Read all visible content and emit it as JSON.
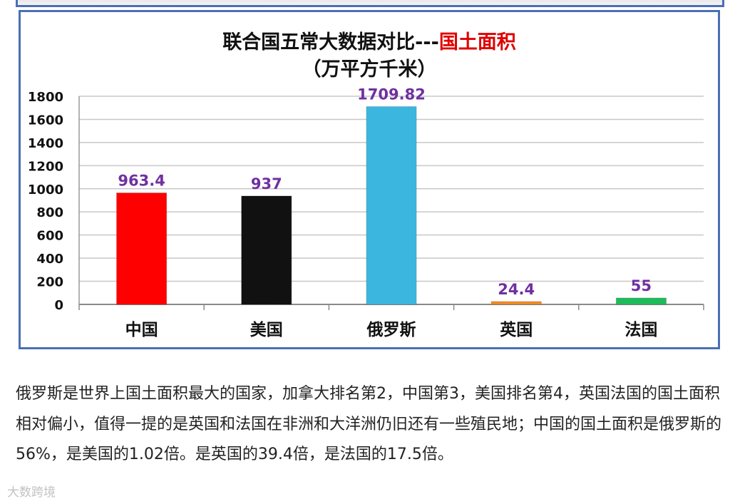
{
  "chart_data": {
    "type": "bar",
    "title": "联合国五常大数据对比---",
    "title_highlight": "国土面积",
    "subtitle": "（万平方千米）",
    "categories": [
      "中国",
      "美国",
      "俄罗斯",
      "英国",
      "法国"
    ],
    "values": [
      963.4,
      937,
      1709.82,
      24.4,
      55
    ],
    "value_labels": [
      "963.4",
      "937",
      "1709.82",
      "24.4",
      "55"
    ],
    "colors": [
      "#ff0000",
      "#111111",
      "#3bb6de",
      "#f08a24",
      "#1ebb5a"
    ],
    "ylim": [
      0,
      1800
    ],
    "yticks": [
      0,
      200,
      400,
      600,
      800,
      1000,
      1200,
      1400,
      1600,
      1800
    ],
    "grid": true,
    "label_color": "#7030a0"
  },
  "article": {
    "paragraph": "俄罗斯是世界上国土面积最大的国家，加拿大排名第2，中国第3，美国排名第4，英国法国的国土面积相对偏小，值得一提的是英国和法国在非洲和大洋洲仍旧还有一些殖民地；中国的国土面积是俄罗斯的56%，是美国的1.02倍。是英国的39.4倍，是法国的17.5倍。"
  },
  "watermark": {
    "text": "大数跨境"
  }
}
